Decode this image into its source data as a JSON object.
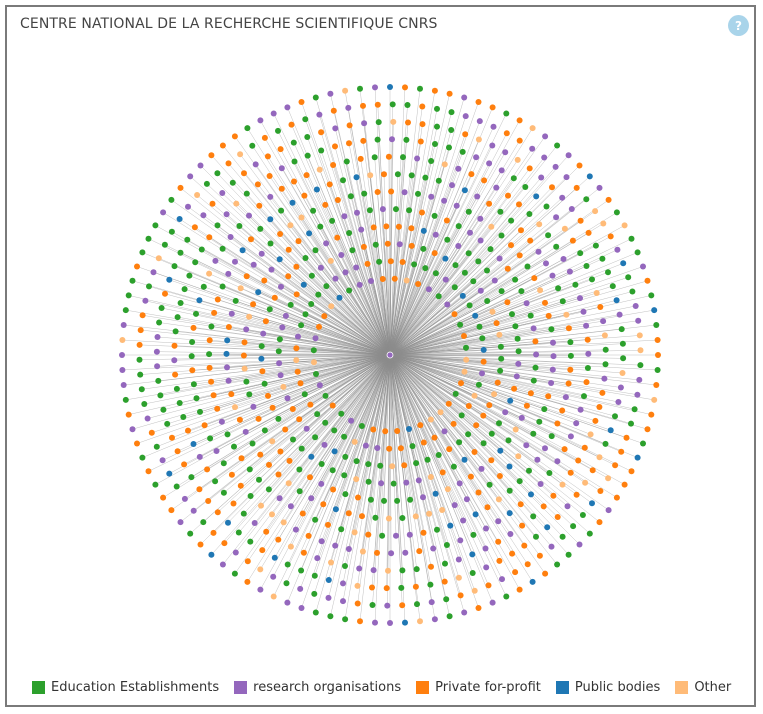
{
  "title": "CENTRE NATIONAL DE LA RECHERCHE SCIENTIFIQUE CNRS",
  "help_icon": "?",
  "center_node": {
    "color": "#9467bd"
  },
  "edge_color": "#8c8c8c",
  "legend": [
    {
      "label": "Education Establishments",
      "color": "#2ca02c",
      "icon": "square-swatch"
    },
    {
      "label": "research organisations",
      "color": "#9467bd",
      "icon": "square-swatch"
    },
    {
      "label": "Private for-profit",
      "color": "#ff7f0e",
      "icon": "square-swatch"
    },
    {
      "label": "Public bodies",
      "color": "#1f77b4",
      "icon": "square-swatch"
    },
    {
      "label": "Other",
      "color": "#ffbb78",
      "icon": "square-swatch"
    }
  ],
  "category_shares": [
    0.33,
    0.25,
    0.27,
    0.06,
    0.09
  ]
}
